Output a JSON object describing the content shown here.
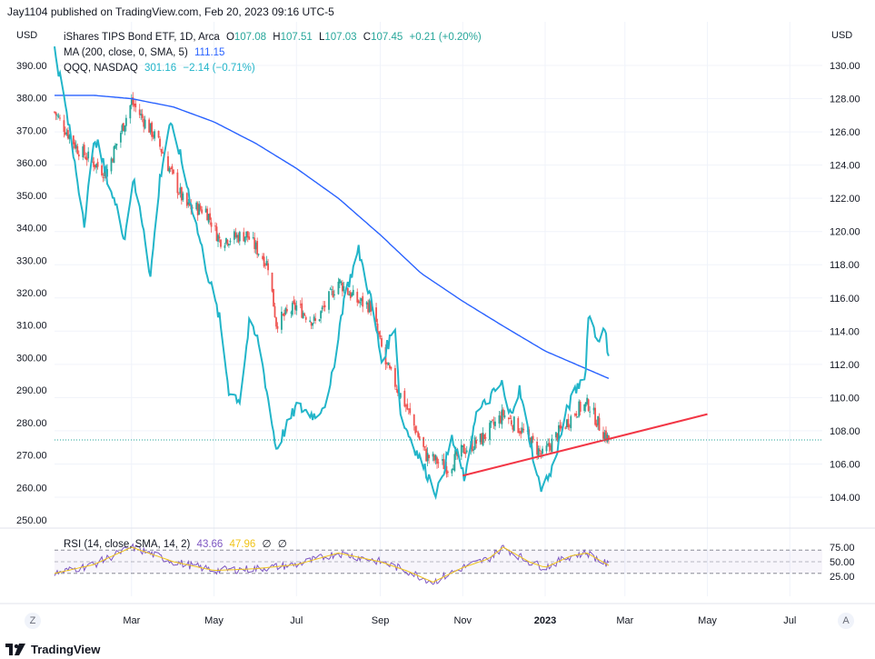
{
  "header": {
    "published": "Jay1104 published on TradingView.com, Feb 20, 2023 09:16 UTC-5"
  },
  "axes": {
    "left_label": "USD",
    "right_label": "USD"
  },
  "legend": {
    "main": {
      "name": "iShares TIPS Bond ETF, 1D, Arca",
      "o_label": "O",
      "o": "107.08",
      "h_label": "H",
      "h": "107.51",
      "l_label": "L",
      "l": "107.03",
      "c_label": "C",
      "c": "107.45",
      "change": "+0.21 (+0.20%)"
    },
    "ma": {
      "name": "MA (200, close, 0, SMA, 5)",
      "value": "111.15"
    },
    "qqq": {
      "name": "QQQ, NASDAQ",
      "value": "301.16",
      "change": "−2.14 (−0.71%)"
    },
    "rsi": {
      "name": "RSI (14, close, SMA, 14, 2)",
      "value": "43.66",
      "value2": "47.96",
      "ph1": "∅",
      "ph2": "∅"
    }
  },
  "left_ticks": [
    "390.00",
    "380.00",
    "370.00",
    "360.00",
    "350.00",
    "340.00",
    "330.00",
    "320.00",
    "310.00",
    "300.00",
    "290.00",
    "280.00",
    "270.00",
    "260.00",
    "250.00"
  ],
  "right_ticks": [
    "130.00",
    "128.00",
    "126.00",
    "124.00",
    "122.00",
    "120.00",
    "118.00",
    "116.00",
    "114.00",
    "112.00",
    "110.00",
    "108.00",
    "106.00",
    "104.00"
  ],
  "rsi_ticks": [
    "75.00",
    "50.00",
    "25.00"
  ],
  "time_ticks": [
    "Mar",
    "May",
    "Jul",
    "Sep",
    "Nov",
    "2023",
    "Mar",
    "May",
    "Jul"
  ],
  "buttons": {
    "left": "Z",
    "right": "A"
  },
  "footer": {
    "brand": "TradingView"
  },
  "colors": {
    "up": "#26a69a",
    "down": "#ef5350",
    "qqq": "#22b5c9",
    "ma": "#2962ff",
    "trend": "#f23645",
    "rsi": "#7e57c2",
    "rsi_ma": "#f0c419"
  },
  "chart_data": {
    "type": "line",
    "series": [
      {
        "name": "iShares TIPS Bond ETF",
        "axis": "right",
        "points": [
          [
            "2022-01-03",
            127.2
          ],
          [
            "2022-01-20",
            125.0
          ],
          [
            "2022-02-10",
            123.5
          ],
          [
            "2022-03-01",
            127.8
          ],
          [
            "2022-03-20",
            125.5
          ],
          [
            "2022-04-10",
            121.5
          ],
          [
            "2022-04-25",
            121.3
          ],
          [
            "2022-05-05",
            119.5
          ],
          [
            "2022-05-25",
            119.8
          ],
          [
            "2022-06-10",
            118.0
          ],
          [
            "2022-06-16",
            114.5
          ],
          [
            "2022-07-01",
            115.5
          ],
          [
            "2022-07-15",
            114.5
          ],
          [
            "2022-08-01",
            117.0
          ],
          [
            "2022-08-15",
            115.8
          ],
          [
            "2022-08-25",
            115.5
          ],
          [
            "2022-09-05",
            112.0
          ],
          [
            "2022-09-20",
            109.5
          ],
          [
            "2022-10-05",
            106.5
          ],
          [
            "2022-10-21",
            105.8
          ],
          [
            "2022-11-01",
            106.8
          ],
          [
            "2022-11-15",
            107.5
          ],
          [
            "2022-12-01",
            109.0
          ],
          [
            "2022-12-15",
            108.0
          ],
          [
            "2022-12-30",
            106.5
          ],
          [
            "2023-01-12",
            108.0
          ],
          [
            "2023-01-25",
            109.3
          ],
          [
            "2023-02-02",
            109.6
          ],
          [
            "2023-02-10",
            108.3
          ],
          [
            "2023-02-17",
            107.45
          ]
        ]
      },
      {
        "name": "QQQ, NASDAQ",
        "axis": "left",
        "points": [
          [
            "2022-01-03",
            395
          ],
          [
            "2022-01-10",
            380
          ],
          [
            "2022-01-25",
            342
          ],
          [
            "2022-02-02",
            368
          ],
          [
            "2022-02-15",
            350
          ],
          [
            "2022-02-24",
            337
          ],
          [
            "2022-03-02",
            355
          ],
          [
            "2022-03-10",
            340
          ],
          [
            "2022-03-15",
            325
          ],
          [
            "2022-03-22",
            355
          ],
          [
            "2022-03-29",
            372
          ],
          [
            "2022-04-05",
            364
          ],
          [
            "2022-04-15",
            346
          ],
          [
            "2022-04-25",
            328
          ],
          [
            "2022-05-05",
            312
          ],
          [
            "2022-05-12",
            290
          ],
          [
            "2022-05-20",
            287
          ],
          [
            "2022-05-27",
            310
          ],
          [
            "2022-06-03",
            305
          ],
          [
            "2022-06-16",
            272
          ],
          [
            "2022-07-01",
            285
          ],
          [
            "2022-07-15",
            282
          ],
          [
            "2022-07-25",
            288
          ],
          [
            "2022-08-05",
            318
          ],
          [
            "2022-08-16",
            333
          ],
          [
            "2022-08-25",
            318
          ],
          [
            "2022-09-02",
            299
          ],
          [
            "2022-09-12",
            310
          ],
          [
            "2022-09-16",
            282
          ],
          [
            "2022-09-30",
            269
          ],
          [
            "2022-10-13",
            258
          ],
          [
            "2022-10-24",
            275
          ],
          [
            "2022-11-03",
            262
          ],
          [
            "2022-11-10",
            282
          ],
          [
            "2022-11-30",
            292
          ],
          [
            "2022-12-05",
            282
          ],
          [
            "2022-12-13",
            290
          ],
          [
            "2022-12-28",
            260
          ],
          [
            "2023-01-05",
            264
          ],
          [
            "2023-01-18",
            285
          ],
          [
            "2023-01-31",
            296
          ],
          [
            "2023-02-02",
            314
          ],
          [
            "2023-02-08",
            306
          ],
          [
            "2023-02-14",
            308
          ],
          [
            "2023-02-17",
            301.16
          ]
        ]
      },
      {
        "name": "MA (200, close, 0, SMA, 5)",
        "axis": "right",
        "points": [
          [
            "2022-01-03",
            128.2
          ],
          [
            "2022-02-01",
            128.2
          ],
          [
            "2022-03-01",
            128.0
          ],
          [
            "2022-04-01",
            127.5
          ],
          [
            "2022-05-01",
            126.6
          ],
          [
            "2022-06-01",
            125.3
          ],
          [
            "2022-07-01",
            123.8
          ],
          [
            "2022-08-01",
            122.0
          ],
          [
            "2022-09-01",
            119.8
          ],
          [
            "2022-10-01",
            117.5
          ],
          [
            "2022-11-01",
            115.8
          ],
          [
            "2022-12-01",
            114.3
          ],
          [
            "2023-01-01",
            112.8
          ],
          [
            "2023-02-17",
            111.15
          ]
        ]
      },
      {
        "name": "RSI (14, close, SMA, 14, 2)",
        "axis": "rsi",
        "points": [
          [
            "2022-01-03",
            30
          ],
          [
            "2022-02-01",
            45
          ],
          [
            "2022-03-01",
            75
          ],
          [
            "2022-04-01",
            50
          ],
          [
            "2022-05-01",
            35
          ],
          [
            "2022-06-01",
            38
          ],
          [
            "2022-07-01",
            45
          ],
          [
            "2022-08-01",
            65
          ],
          [
            "2022-09-01",
            50
          ],
          [
            "2022-09-20",
            35
          ],
          [
            "2022-10-10",
            15
          ],
          [
            "2022-11-01",
            40
          ],
          [
            "2022-11-20",
            55
          ],
          [
            "2022-12-01",
            75
          ],
          [
            "2022-12-20",
            50
          ],
          [
            "2023-01-01",
            40
          ],
          [
            "2023-01-20",
            60
          ],
          [
            "2023-02-01",
            65
          ],
          [
            "2023-02-17",
            43.66
          ]
        ]
      }
    ],
    "trendline": {
      "axis": "right",
      "from": [
        "2022-11-01",
        105.3
      ],
      "to": [
        "2023-05-01",
        109.0
      ]
    },
    "right_ylim": [
      103,
      131
    ],
    "left_ylim": [
      250,
      395
    ],
    "rsi_ylim": [
      0,
      100
    ],
    "rsi_bands": [
      70,
      50,
      30
    ],
    "grid": true,
    "legend": "top-left"
  }
}
